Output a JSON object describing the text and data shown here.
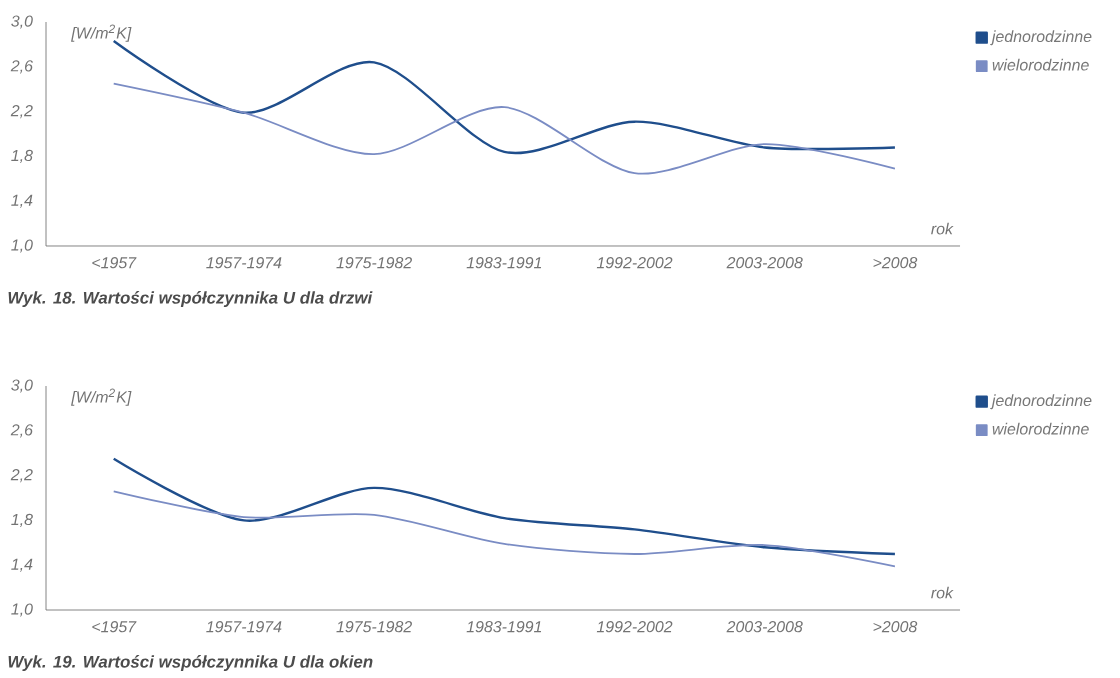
{
  "chart_data": [
    {
      "type": "line",
      "title": "Wyk. 18. Wartości współczynnika U dla drzwi",
      "ylabel": "[W/m$^{2}$K]",
      "xlabel": "rok",
      "categories": [
        "<1957",
        "1957-1974",
        "1975-1982",
        "1983-1991",
        "1992-2002",
        "2003-2008",
        ">2008"
      ],
      "series": [
        {
          "name": "jednorodzinne",
          "color": "#1f4e8c",
          "values": [
            2.83,
            2.19,
            2.64,
            1.84,
            2.11,
            1.88,
            1.88
          ]
        },
        {
          "name": "wielorodzinne",
          "color": "#7a8cc4",
          "values": [
            2.45,
            2.19,
            1.82,
            2.24,
            1.65,
            1.91,
            1.69
          ]
        }
      ],
      "ylim": [
        1.0,
        3.0
      ],
      "yticks": [
        {
          "value": 1.0,
          "label": "1,0"
        },
        {
          "value": 1.4,
          "label": "1,4"
        },
        {
          "value": 1.8,
          "label": "1,8"
        },
        {
          "value": 2.2,
          "label": "2,2"
        },
        {
          "value": 2.6,
          "label": "2,6"
        },
        {
          "value": 3.0,
          "label": "3,0"
        }
      ],
      "grid": false,
      "legend": "top right",
      "marker": "none",
      "line_style": "solid"
    },
    {
      "type": "line",
      "title": "Wyk. 19. Wartości współczynnika U dla okien",
      "ylabel": "[W/m$^{2}$K]",
      "xlabel": "rok",
      "categories": [
        "<1957",
        "1957-1974",
        "1975-1982",
        "1983-1991",
        "1992-2002",
        "2003-2008",
        ">2008"
      ],
      "series": [
        {
          "name": "jednorodzinne",
          "color": "#1f4e8c",
          "values": [
            2.35,
            1.8,
            2.09,
            1.82,
            1.72,
            1.56,
            1.5
          ]
        },
        {
          "name": "wielorodzinne",
          "color": "#7a8cc4",
          "values": [
            2.06,
            1.83,
            1.85,
            1.59,
            1.5,
            1.58,
            1.39
          ]
        }
      ],
      "ylim": [
        1.0,
        3.0
      ],
      "yticks": [
        {
          "value": 1.0,
          "label": "1,0"
        },
        {
          "value": 1.4,
          "label": "1,4"
        },
        {
          "value": 1.8,
          "label": "1,8"
        },
        {
          "value": 2.2,
          "label": "2,2"
        },
        {
          "value": 2.6,
          "label": "2,6"
        },
        {
          "value": 3.0,
          "label": "3,0"
        }
      ],
      "grid": false,
      "legend": "top right",
      "marker": "none",
      "line_style": "solid"
    }
  ]
}
